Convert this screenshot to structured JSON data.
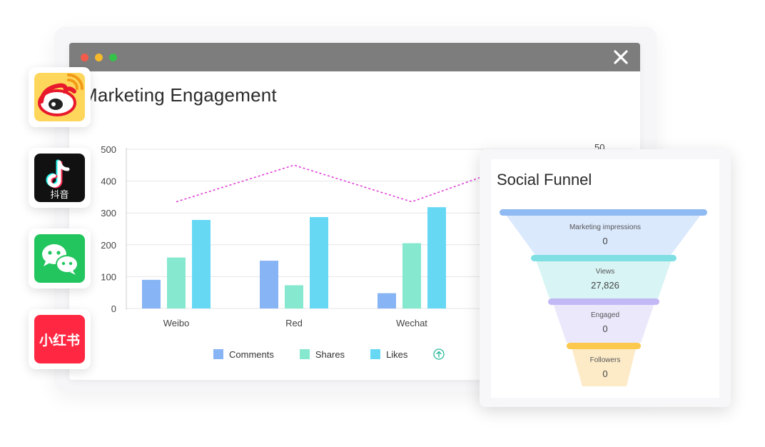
{
  "window": {
    "title": "Marketing Engagement"
  },
  "apps": [
    {
      "name": "weibo",
      "color": "#ffd65c"
    },
    {
      "name": "douyin",
      "label": "抖音",
      "color": "#111111"
    },
    {
      "name": "wechat",
      "color": "#22c55e"
    },
    {
      "name": "xiaohongshu",
      "label": "小红书",
      "color": "#ff2741"
    }
  ],
  "chart_data": {
    "type": "bar",
    "categories": [
      "Weibo",
      "Red",
      "Wechat"
    ],
    "series": [
      {
        "name": "Comments",
        "color": "#87b4f5",
        "values": [
          90,
          150,
          48
        ]
      },
      {
        "name": "Shares",
        "color": "#86e8cf",
        "values": [
          160,
          73,
          205
        ]
      },
      {
        "name": "Likes",
        "color": "#66d8f4",
        "values": [
          278,
          287,
          318
        ]
      }
    ],
    "line": {
      "color": "#e040d8",
      "values": [
        335,
        450,
        335
      ]
    },
    "y_ticks": [
      "0",
      "100",
      "200",
      "300",
      "400",
      "500"
    ],
    "ylim": [
      0,
      500
    ],
    "y2_ticks": [
      "50"
    ],
    "grid": true,
    "legend": "bottom"
  },
  "funnel": {
    "title": "Social Funnel",
    "stages": [
      {
        "label": "Marketing impressions",
        "value": "0",
        "band": "#8fbaf2",
        "fill": "#dbe9fd"
      },
      {
        "label": "Views",
        "value": "27,826",
        "band": "#7fdfe3",
        "fill": "#d8f4f4"
      },
      {
        "label": "Engaged",
        "value": "0",
        "band": "#c3b8f6",
        "fill": "#ece8fc"
      },
      {
        "label": "Followers",
        "value": "0",
        "band": "#fcc84e",
        "fill": "#fdebc8"
      }
    ]
  }
}
